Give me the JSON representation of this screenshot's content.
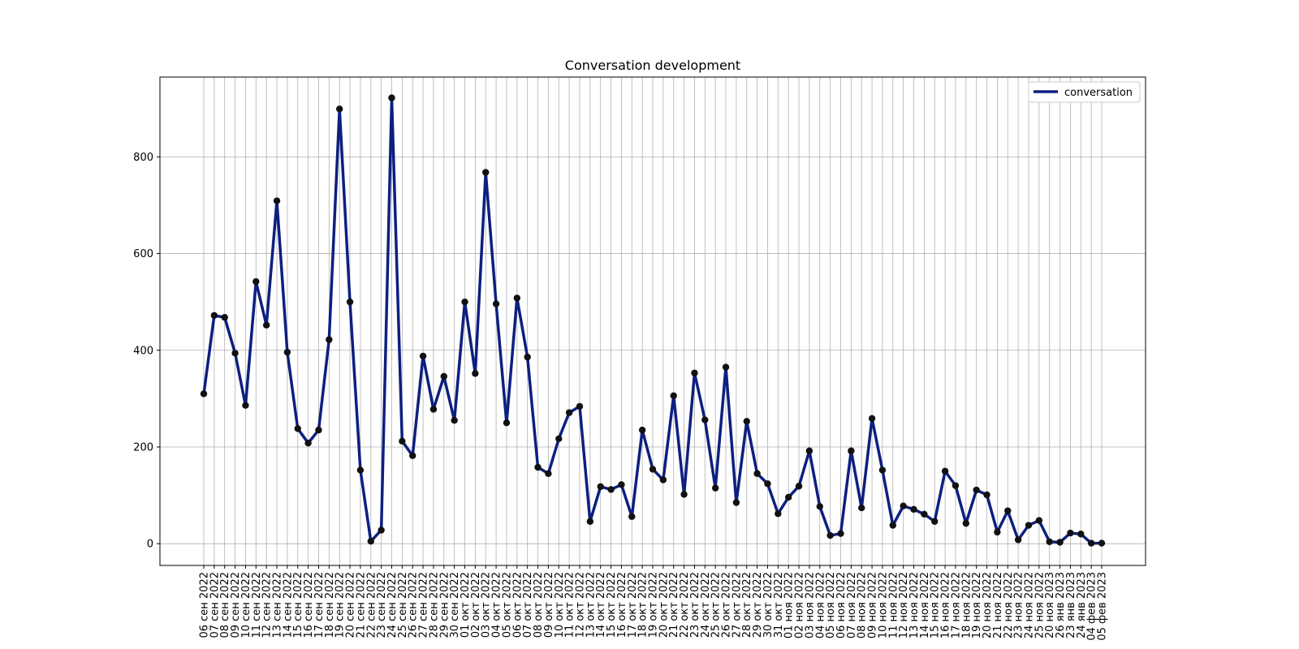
{
  "chart_data": {
    "type": "line",
    "title": "Conversation development",
    "xlabel": "",
    "ylabel": "",
    "ylim": [
      -45,
      965
    ],
    "y_ticks": [
      "0",
      "200",
      "400",
      "600",
      "800"
    ],
    "grid": true,
    "legend_position": "top-right",
    "categories": [
      "06 сен 2022",
      "07 сен 2022",
      "08 сен 2022",
      "09 сен 2022",
      "10 сен 2022",
      "11 сен 2022",
      "12 сен 2022",
      "13 сен 2022",
      "14 сен 2022",
      "15 сен 2022",
      "16 сен 2022",
      "17 сен 2022",
      "18 сен 2022",
      "19 сен 2022",
      "20 сен 2022",
      "21 сен 2022",
      "22 сен 2022",
      "23 сен 2022",
      "24 сен 2022",
      "25 сен 2022",
      "26 сен 2022",
      "27 сен 2022",
      "28 сен 2022",
      "29 сен 2022",
      "30 сен 2022",
      "01 окт 2022",
      "02 окт 2022",
      "03 окт 2022",
      "04 окт 2022",
      "05 окт 2022",
      "06 окт 2022",
      "07 окт 2022",
      "08 окт 2022",
      "09 окт 2022",
      "10 окт 2022",
      "11 окт 2022",
      "12 окт 2022",
      "13 окт 2022",
      "14 окт 2022",
      "15 окт 2022",
      "16 окт 2022",
      "17 окт 2022",
      "18 окт 2022",
      "19 окт 2022",
      "20 окт 2022",
      "21 окт 2022",
      "22 окт 2022",
      "23 окт 2022",
      "24 окт 2022",
      "25 окт 2022",
      "26 окт 2022",
      "27 окт 2022",
      "28 окт 2022",
      "29 окт 2022",
      "30 окт 2022",
      "31 окт 2022",
      "01 ноя 2022",
      "02 ноя 2022",
      "03 ноя 2022",
      "04 ноя 2022",
      "05 ноя 2022",
      "06 ноя 2022",
      "07 ноя 2022",
      "08 ноя 2022",
      "09 ноя 2022",
      "10 ноя 2022",
      "11 ноя 2022",
      "12 ноя 2022",
      "13 ноя 2022",
      "14 ноя 2022",
      "15 ноя 2022",
      "16 ноя 2022",
      "17 ноя 2022",
      "18 ноя 2022",
      "19 ноя 2022",
      "20 ноя 2022",
      "21 ноя 2022",
      "22 ноя 2022",
      "23 ноя 2022",
      "24 ноя 2022",
      "25 ноя 2022",
      "20 ноя 2023",
      "26 янв 2023",
      "23 янв 2023",
      "24 янв 2023",
      "04 фев 2023",
      "05 фев 2023"
    ],
    "series": [
      {
        "name": "conversation",
        "color": "#0d1f80",
        "marker_color": "#111111",
        "values": [
          310,
          472,
          468,
          394,
          286,
          542,
          452,
          709,
          396,
          238,
          208,
          235,
          422,
          899,
          500,
          152,
          5,
          28,
          922,
          212,
          182,
          388,
          278,
          346,
          255,
          500,
          352,
          768,
          496,
          250,
          508,
          386,
          158,
          145,
          217,
          271,
          284,
          46,
          118,
          112,
          122,
          56,
          235,
          154,
          132,
          306,
          102,
          353,
          256,
          115,
          365,
          85,
          253,
          145,
          124,
          62,
          96,
          119,
          192,
          77,
          17,
          21,
          192,
          74,
          259,
          152,
          38,
          78,
          71,
          61,
          46,
          150,
          120,
          42,
          111,
          101,
          24,
          68,
          8,
          38,
          48,
          4,
          3,
          22,
          20,
          1,
          1
        ]
      }
    ]
  }
}
